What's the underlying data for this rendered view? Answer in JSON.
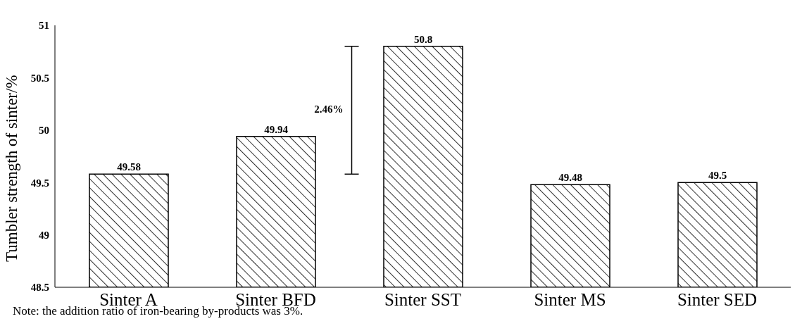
{
  "chart_data": {
    "type": "bar",
    "ylabel": "Tumbler strength of sinter/%",
    "categories": [
      "Sinter A",
      "Sinter BFD",
      "Sinter SST",
      "Sinter MS",
      "Sinter SED"
    ],
    "values": [
      49.58,
      49.94,
      50.8,
      49.48,
      49.5
    ],
    "color": "#000000",
    "ylim": [
      48.5,
      51
    ],
    "yticks": [
      48.5,
      49,
      49.5,
      50,
      50.5,
      51
    ],
    "grid": false,
    "data_labels": true,
    "annotations": [
      "2.46%",
      "Note: the addition ratio of iron-bearing by-products was 3%."
    ]
  }
}
